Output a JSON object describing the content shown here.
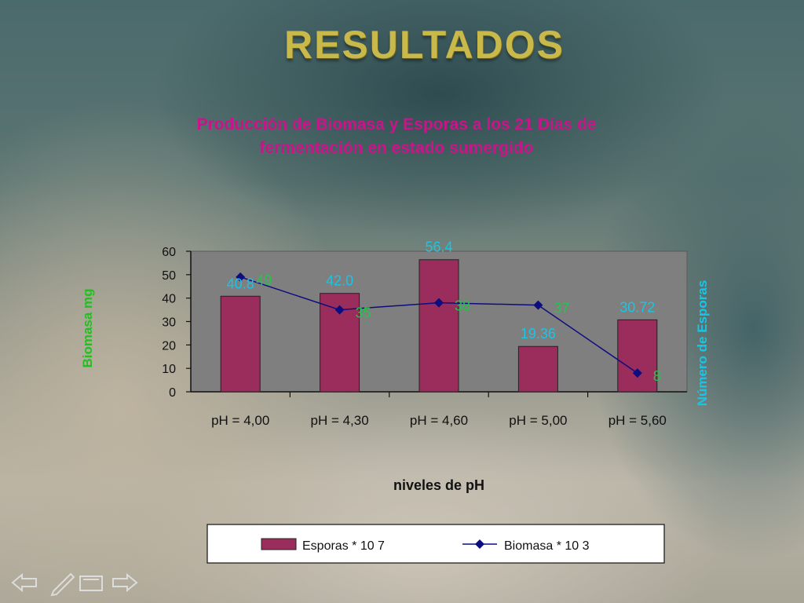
{
  "slide": {
    "title": "RESULTADOS"
  },
  "chart_data": {
    "type": "bar",
    "title_lines": [
      "Producción de Biomasa y Esporas a los 21 Días de",
      "fermentación en estado sumergido"
    ],
    "categories": [
      "pH = 4,00",
      "pH = 4,30",
      "pH = 4,60",
      "pH = 5,00",
      "pH = 5,60"
    ],
    "xlabel": "niveles de pH",
    "ylabel": "Biomasa mg",
    "y2label": "Número de Esporas",
    "ylim": [
      0,
      60
    ],
    "yticks": [
      "0",
      "10",
      "20",
      "30",
      "40",
      "50",
      "60"
    ],
    "grid": false,
    "legend_position": "bottom",
    "series": [
      {
        "name": "Esporas * 10 7",
        "type": "bar",
        "color": "#9b2d5c",
        "values": [
          40.8,
          42.0,
          56.4,
          19.36,
          30.72
        ],
        "labels": [
          "40.8",
          "42.0",
          "56.4",
          "19.36",
          "30.72"
        ],
        "label_color": "#19c5e6"
      },
      {
        "name": "Biomasa * 10 3",
        "type": "line",
        "color": "#0d0d80",
        "values": [
          49,
          35,
          38,
          37,
          8
        ],
        "labels": [
          "49",
          "35",
          "38",
          "37",
          "8"
        ],
        "label_color": "#22c54a"
      }
    ],
    "colors": {
      "title": "#c8158a",
      "ylabel": "#21c021",
      "y2label": "#19c5e6"
    }
  },
  "nav": {
    "icons": [
      "back-arrow-icon",
      "pen-icon",
      "screen-icon",
      "forward-arrow-icon"
    ]
  }
}
